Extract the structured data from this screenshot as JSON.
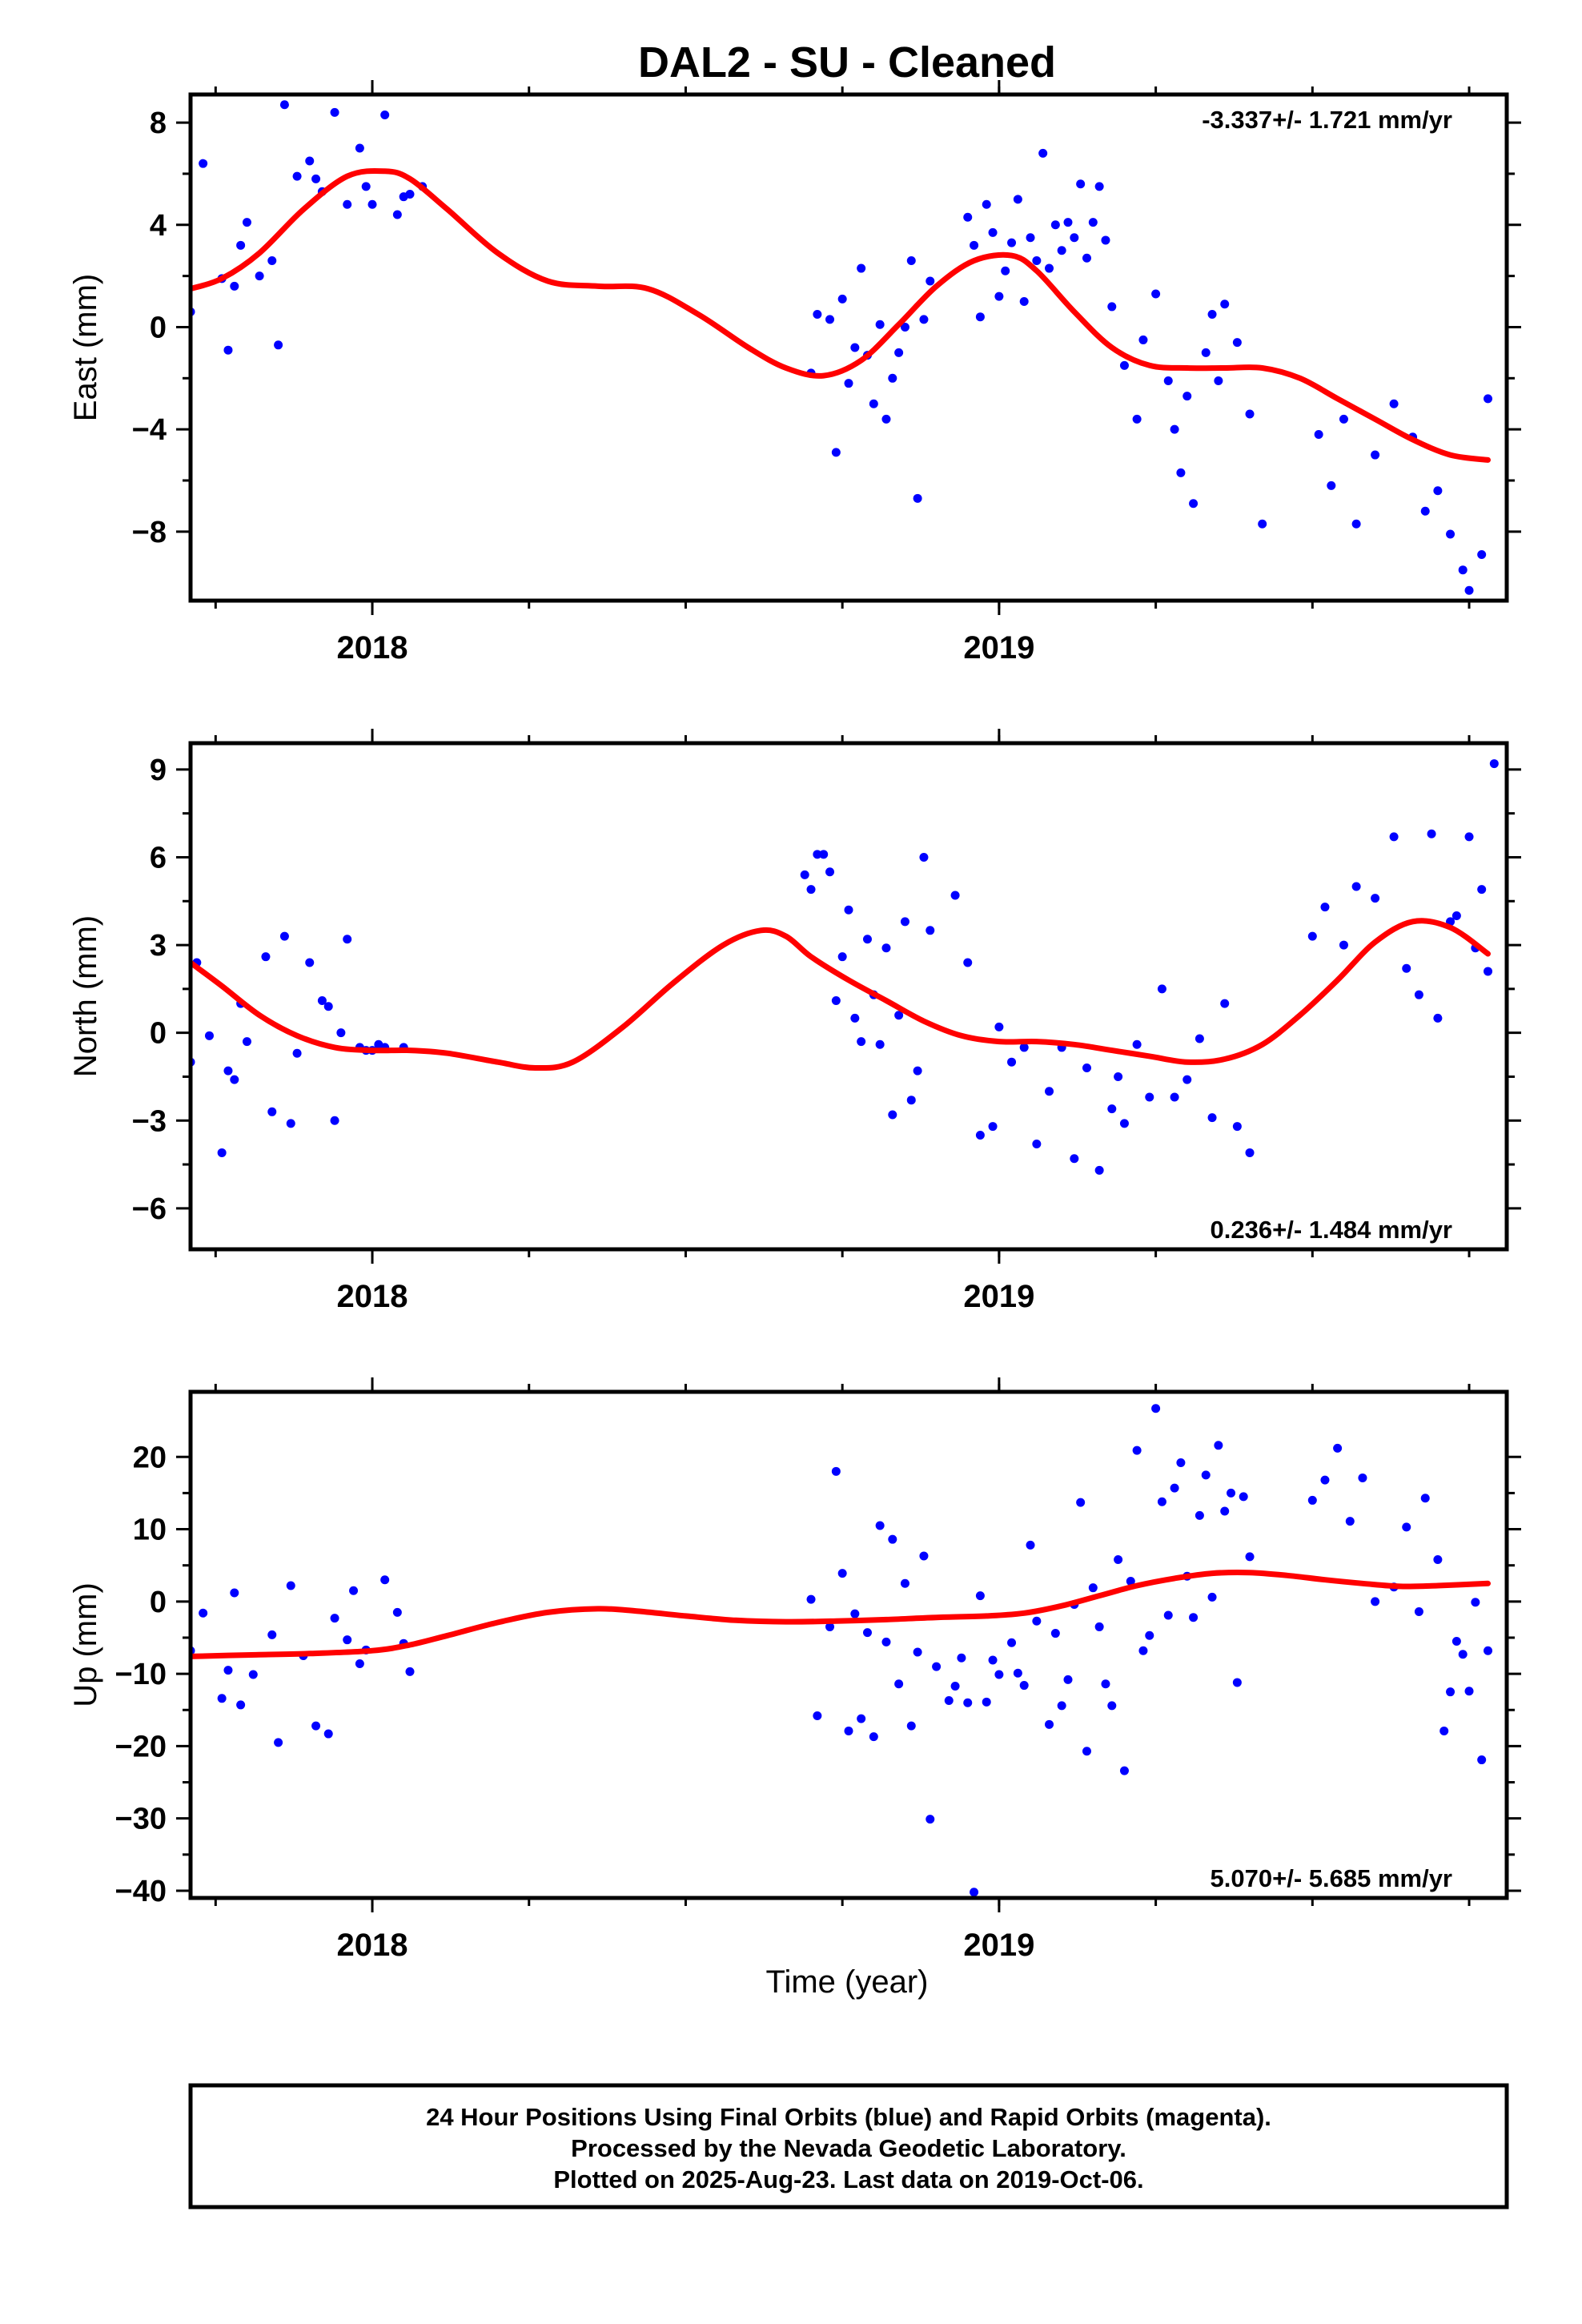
{
  "figure": {
    "title": "DAL2  - SU - Cleaned",
    "xlabel": "Time (year)",
    "footer": {
      "line1": "24 Hour Positions Using Final Orbits (blue) and Rapid Orbits (magenta).",
      "line2": "Processed by the Nevada Geodetic Laboratory.",
      "line3": "Plotted on 2025-Aug-23. Last data on 2019-Oct-06."
    },
    "colors": {
      "points": "#0000ff",
      "fit": "#ff0000",
      "frame": "#000000"
    }
  },
  "chart_data": [
    {
      "type": "scatter",
      "panel": "east",
      "ylabel": "East (mm)",
      "rate_text": "-3.337+/- 1.721 mm/yr",
      "rate_placement": "top-right",
      "xlim": [
        2017.71,
        2019.81
      ],
      "ylim": [
        -10.7,
        9.1
      ],
      "yticks": [
        8,
        4,
        0,
        -4,
        -8
      ],
      "ytick_labels": [
        "8",
        "4",
        "0",
        "−4",
        "−8"
      ],
      "xticks": [
        2018,
        2019
      ],
      "xtick_labels": [
        "2018",
        "2019"
      ],
      "grid": false,
      "series": [
        {
          "kind": "points",
          "x": [
            2017.71,
            2017.73,
            2017.76,
            2017.77,
            2017.78,
            2017.79,
            2017.8,
            2017.82,
            2017.84,
            2017.85,
            2017.86,
            2017.88,
            2017.9,
            2017.91,
            2017.92,
            2017.94,
            2017.96,
            2017.98,
            2017.99,
            2018.0,
            2018.02,
            2018.04,
            2018.05,
            2018.06,
            2018.08,
            2018.7,
            2018.71,
            2018.73,
            2018.74,
            2018.75,
            2018.76,
            2018.77,
            2018.78,
            2018.79,
            2018.8,
            2018.81,
            2018.82,
            2018.83,
            2018.84,
            2018.85,
            2018.86,
            2018.87,
            2018.88,
            2018.89,
            2018.95,
            2018.96,
            2018.97,
            2018.98,
            2018.99,
            2019.0,
            2019.01,
            2019.02,
            2019.03,
            2019.04,
            2019.05,
            2019.06,
            2019.07,
            2019.08,
            2019.09,
            2019.1,
            2019.11,
            2019.12,
            2019.13,
            2019.14,
            2019.15,
            2019.16,
            2019.17,
            2019.18,
            2019.2,
            2019.22,
            2019.23,
            2019.25,
            2019.27,
            2019.28,
            2019.29,
            2019.3,
            2019.31,
            2019.33,
            2019.34,
            2019.35,
            2019.36,
            2019.38,
            2019.4,
            2019.42,
            2019.51,
            2019.53,
            2019.55,
            2019.57,
            2019.6,
            2019.63,
            2019.66,
            2019.68,
            2019.7,
            2019.72,
            2019.74,
            2019.75,
            2019.77,
            2019.78
          ],
          "y": [
            0.6,
            6.4,
            1.9,
            -0.9,
            1.6,
            3.2,
            4.1,
            2.0,
            2.6,
            -0.7,
            8.7,
            5.9,
            6.5,
            5.8,
            5.3,
            8.4,
            4.8,
            7.0,
            5.5,
            4.8,
            8.3,
            4.4,
            5.1,
            5.2,
            5.5,
            -1.8,
            0.5,
            0.3,
            -4.9,
            1.1,
            -2.2,
            -0.8,
            2.3,
            -1.1,
            -3.0,
            0.1,
            -3.6,
            -2.0,
            -1.0,
            0.0,
            2.6,
            -6.7,
            0.3,
            1.8,
            4.3,
            3.2,
            0.4,
            4.8,
            3.7,
            1.2,
            2.2,
            3.3,
            5.0,
            1.0,
            3.5,
            2.6,
            6.8,
            2.3,
            4.0,
            3.0,
            4.1,
            3.5,
            5.6,
            2.7,
            4.1,
            5.5,
            3.4,
            0.8,
            -1.5,
            -3.6,
            -0.5,
            1.3,
            -2.1,
            -4.0,
            -5.7,
            -2.7,
            -6.9,
            -1.0,
            0.5,
            -2.1,
            0.9,
            -0.6,
            -3.4,
            -7.7,
            -4.2,
            -6.2,
            -3.6,
            -7.7,
            -5.0,
            -3.0,
            -4.3,
            -7.2,
            -6.4,
            -8.1,
            -9.5,
            -10.3,
            -8.9,
            -2.8
          ]
        },
        {
          "kind": "fit",
          "x": [
            2017.71,
            2017.76,
            2017.82,
            2017.89,
            2017.96,
            2018.02,
            2018.06,
            2018.12,
            2018.2,
            2018.28,
            2018.36,
            2018.44,
            2018.52,
            2018.6,
            2018.66,
            2018.72,
            2018.78,
            2018.84,
            2018.9,
            2018.96,
            2019.02,
            2019.06,
            2019.12,
            2019.18,
            2019.24,
            2019.3,
            2019.36,
            2019.42,
            2019.48,
            2019.54,
            2019.6,
            2019.66,
            2019.72,
            2019.78
          ],
          "y": [
            1.5,
            1.9,
            2.9,
            4.6,
            5.9,
            6.1,
            5.8,
            4.6,
            2.9,
            1.8,
            1.6,
            1.5,
            0.5,
            -0.8,
            -1.6,
            -1.9,
            -1.3,
            0.1,
            1.6,
            2.6,
            2.8,
            2.2,
            0.6,
            -0.8,
            -1.5,
            -1.6,
            -1.6,
            -1.6,
            -2.0,
            -2.8,
            -3.6,
            -4.4,
            -5.0,
            -5.2
          ]
        }
      ]
    },
    {
      "type": "scatter",
      "panel": "north",
      "ylabel": "North (mm)",
      "rate_text": "0.236+/- 1.484 mm/yr",
      "rate_placement": "bottom-right",
      "xlim": [
        2017.71,
        2019.81
      ],
      "ylim": [
        -7.4,
        9.9
      ],
      "yticks": [
        9,
        6,
        3,
        0,
        -3,
        -6
      ],
      "ytick_labels": [
        "9",
        "6",
        "3",
        "0",
        "−3",
        "−6"
      ],
      "xticks": [
        2018,
        2019
      ],
      "xtick_labels": [
        "2018",
        "2019"
      ],
      "grid": false,
      "series": [
        {
          "kind": "points",
          "x": [
            2017.71,
            2017.72,
            2017.74,
            2017.76,
            2017.77,
            2017.78,
            2017.79,
            2017.8,
            2017.83,
            2017.84,
            2017.86,
            2017.87,
            2017.88,
            2017.9,
            2017.92,
            2017.93,
            2017.94,
            2017.95,
            2017.96,
            2017.98,
            2017.99,
            2018.0,
            2018.01,
            2018.02,
            2018.05,
            2018.69,
            2018.7,
            2018.71,
            2018.72,
            2018.73,
            2018.74,
            2018.75,
            2018.76,
            2018.77,
            2018.78,
            2018.79,
            2018.8,
            2018.81,
            2018.82,
            2018.83,
            2018.84,
            2018.85,
            2018.86,
            2018.87,
            2018.88,
            2018.89,
            2018.93,
            2018.95,
            2018.97,
            2018.99,
            2019.0,
            2019.02,
            2019.04,
            2019.06,
            2019.08,
            2019.1,
            2019.12,
            2019.14,
            2019.16,
            2019.18,
            2019.19,
            2019.2,
            2019.22,
            2019.24,
            2019.26,
            2019.28,
            2019.3,
            2019.32,
            2019.34,
            2019.36,
            2019.38,
            2019.4,
            2019.5,
            2019.52,
            2019.55,
            2019.57,
            2019.6,
            2019.63,
            2019.65,
            2019.67,
            2019.69,
            2019.7,
            2019.72,
            2019.73,
            2019.75,
            2019.76,
            2019.77,
            2019.78,
            2019.79
          ],
          "y": [
            -1.0,
            2.4,
            -0.1,
            -4.1,
            -1.3,
            -1.6,
            1.0,
            -0.3,
            2.6,
            -2.7,
            3.3,
            -3.1,
            -0.7,
            2.4,
            1.1,
            0.9,
            -3.0,
            0.0,
            3.2,
            -0.5,
            -0.6,
            -0.6,
            -0.4,
            -0.5,
            -0.5,
            5.4,
            4.9,
            6.1,
            6.1,
            5.5,
            1.1,
            2.6,
            4.2,
            0.5,
            -0.3,
            3.2,
            1.3,
            -0.4,
            2.9,
            -2.8,
            0.6,
            3.8,
            -2.3,
            -1.3,
            6.0,
            3.5,
            4.7,
            2.4,
            -3.5,
            -3.2,
            0.2,
            -1.0,
            -0.5,
            -3.8,
            -2.0,
            -0.5,
            -4.3,
            -1.2,
            -4.7,
            -2.6,
            -1.5,
            -3.1,
            -0.4,
            -2.2,
            1.5,
            -2.2,
            -1.6,
            -0.2,
            -2.9,
            1.0,
            -3.2,
            -4.1,
            3.3,
            4.3,
            3.0,
            5.0,
            4.6,
            6.7,
            2.2,
            1.3,
            6.8,
            0.5,
            3.8,
            4.0,
            6.7,
            2.9,
            4.9,
            2.1,
            9.2
          ]
        },
        {
          "kind": "fit",
          "x": [
            2017.71,
            2017.76,
            2017.82,
            2017.88,
            2017.94,
            2018.0,
            2018.06,
            2018.12,
            2018.2,
            2018.26,
            2018.32,
            2018.4,
            2018.48,
            2018.56,
            2018.62,
            2018.66,
            2018.7,
            2018.76,
            2018.82,
            2018.88,
            2018.94,
            2019.0,
            2019.06,
            2019.12,
            2019.18,
            2019.24,
            2019.3,
            2019.36,
            2019.42,
            2019.48,
            2019.54,
            2019.6,
            2019.66,
            2019.72,
            2019.78
          ],
          "y": [
            2.4,
            1.6,
            0.6,
            -0.1,
            -0.5,
            -0.6,
            -0.6,
            -0.7,
            -1.0,
            -1.2,
            -1.0,
            0.2,
            1.7,
            3.0,
            3.5,
            3.3,
            2.6,
            1.8,
            1.1,
            0.4,
            -0.1,
            -0.3,
            -0.3,
            -0.4,
            -0.6,
            -0.8,
            -1.0,
            -0.9,
            -0.4,
            0.6,
            1.8,
            3.1,
            3.8,
            3.6,
            2.7
          ]
        }
      ]
    },
    {
      "type": "scatter",
      "panel": "up",
      "ylabel": "Up (mm)",
      "rate_text": "5.070+/- 5.685 mm/yr",
      "rate_placement": "bottom-right",
      "xlim": [
        2017.71,
        2019.81
      ],
      "ylim": [
        -41,
        29
      ],
      "yticks": [
        20,
        10,
        0,
        -10,
        -20,
        -30,
        -40
      ],
      "ytick_labels": [
        "20",
        "10",
        "0",
        "−10",
        "−20",
        "−30",
        "−40"
      ],
      "xticks": [
        2018,
        2019
      ],
      "xtick_labels": [
        "2018",
        "2019"
      ],
      "grid": false,
      "series": [
        {
          "kind": "points",
          "x": [
            2017.71,
            2017.73,
            2017.76,
            2017.77,
            2017.78,
            2017.79,
            2017.81,
            2017.84,
            2017.85,
            2017.87,
            2017.89,
            2017.91,
            2017.93,
            2017.94,
            2017.96,
            2017.97,
            2017.98,
            2017.99,
            2018.02,
            2018.04,
            2018.05,
            2018.06,
            2018.7,
            2018.71,
            2018.73,
            2018.74,
            2018.75,
            2018.76,
            2018.77,
            2018.78,
            2018.79,
            2018.8,
            2018.81,
            2018.82,
            2018.83,
            2018.84,
            2018.85,
            2018.86,
            2018.87,
            2018.88,
            2018.89,
            2018.9,
            2018.92,
            2018.93,
            2018.94,
            2018.95,
            2018.96,
            2018.97,
            2018.98,
            2018.99,
            2019.0,
            2019.02,
            2019.03,
            2019.04,
            2019.05,
            2019.06,
            2019.08,
            2019.09,
            2019.1,
            2019.11,
            2019.12,
            2019.13,
            2019.14,
            2019.15,
            2019.16,
            2019.17,
            2019.18,
            2019.19,
            2019.2,
            2019.21,
            2019.22,
            2019.23,
            2019.24,
            2019.25,
            2019.26,
            2019.27,
            2019.28,
            2019.29,
            2019.3,
            2019.31,
            2019.32,
            2019.33,
            2019.34,
            2019.35,
            2019.36,
            2019.37,
            2019.38,
            2019.39,
            2019.4,
            2019.5,
            2019.52,
            2019.54,
            2019.56,
            2019.58,
            2019.6,
            2019.63,
            2019.65,
            2019.67,
            2019.68,
            2019.7,
            2019.71,
            2019.72,
            2019.73,
            2019.74,
            2019.75,
            2019.76,
            2019.77,
            2019.78
          ],
          "y": [
            -6.8,
            -1.6,
            -13.4,
            -9.5,
            1.2,
            -14.3,
            -10.1,
            -4.6,
            -19.5,
            2.2,
            -7.5,
            -17.2,
            -18.3,
            -2.3,
            -5.3,
            1.5,
            -8.6,
            -6.7,
            3.0,
            -1.5,
            -5.8,
            -9.7,
            0.3,
            -15.8,
            -3.5,
            18.0,
            3.9,
            -17.9,
            -1.7,
            -16.2,
            -4.3,
            -18.7,
            10.5,
            -5.6,
            8.6,
            -11.4,
            2.5,
            -17.2,
            -7.0,
            6.3,
            -30.1,
            -9.0,
            -13.7,
            -11.7,
            -7.8,
            -14.0,
            -40.2,
            0.8,
            -13.9,
            -8.1,
            -10.1,
            -5.7,
            -9.9,
            -11.6,
            7.8,
            -2.7,
            -17.0,
            -4.4,
            -14.4,
            -10.8,
            -0.4,
            13.7,
            -20.7,
            1.9,
            -3.5,
            -11.4,
            -14.4,
            5.8,
            -23.4,
            2.8,
            20.9,
            -6.8,
            -4.7,
            26.7,
            13.8,
            -1.9,
            15.7,
            19.2,
            3.5,
            -2.2,
            11.9,
            17.5,
            0.6,
            21.6,
            12.5,
            15.0,
            -11.2,
            14.5,
            6.2,
            14.0,
            16.8,
            21.2,
            11.1,
            17.1,
            0.0,
            2.0,
            10.3,
            -1.4,
            14.3,
            5.8,
            -17.9,
            -12.5,
            -5.5,
            -7.3,
            -12.4,
            -0.1,
            -21.9,
            -6.8
          ]
        },
        {
          "kind": "fit",
          "x": [
            2017.71,
            2017.8,
            2017.9,
            2018.0,
            2018.06,
            2018.12,
            2018.2,
            2018.28,
            2018.36,
            2018.42,
            2018.5,
            2018.58,
            2018.66,
            2018.74,
            2018.82,
            2018.9,
            2018.98,
            2019.04,
            2019.1,
            2019.16,
            2019.22,
            2019.28,
            2019.34,
            2019.4,
            2019.46,
            2019.52,
            2019.58,
            2019.64,
            2019.7,
            2019.78
          ],
          "y": [
            -7.6,
            -7.4,
            -7.2,
            -6.8,
            -6.0,
            -4.7,
            -2.9,
            -1.5,
            -1.0,
            -1.3,
            -2.0,
            -2.6,
            -2.8,
            -2.7,
            -2.5,
            -2.2,
            -2.0,
            -1.6,
            -0.6,
            0.8,
            2.2,
            3.2,
            3.9,
            4.0,
            3.6,
            3.0,
            2.5,
            2.1,
            2.2,
            2.5
          ]
        }
      ]
    }
  ]
}
